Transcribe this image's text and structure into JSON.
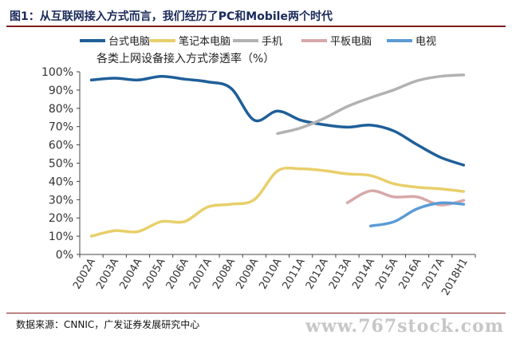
{
  "header": {
    "title": "图1：从互联网接入方式而言，我们经历了PC和Mobile两个时代"
  },
  "source": "数据来源：CNNIC，广发证券发展研究中心",
  "watermark": "www.767stock.com",
  "chart_data": {
    "type": "line",
    "title": "各类上网设备接入方式渗透率（%）",
    "xlabel": "",
    "ylabel": "",
    "ylim": [
      0,
      100
    ],
    "y_ticks": [
      "0%",
      "10%",
      "20%",
      "30%",
      "40%",
      "50%",
      "60%",
      "70%",
      "80%",
      "90%",
      "100%"
    ],
    "categories": [
      "2002A",
      "2003A",
      "2004A",
      "2005A",
      "2006A",
      "2007A",
      "2008A",
      "2009A",
      "2010A",
      "2011A",
      "2012A",
      "2013A",
      "2014A",
      "2015A",
      "2016A",
      "2017A",
      "2018H1"
    ],
    "grid": false,
    "legend_position": "top",
    "series": [
      {
        "name": "台式电脑",
        "color": "#1f5f99",
        "values": [
          95.5,
          96.5,
          95.5,
          97.5,
          96,
          94.5,
          91,
          73.5,
          78.5,
          73.5,
          71,
          69.7,
          70.8,
          67.6,
          60.1,
          53.2,
          48.9
        ]
      },
      {
        "name": "笔记本电脑",
        "color": "#e8cf6a",
        "values": [
          10,
          13,
          12.5,
          18,
          18,
          26,
          27.5,
          30,
          45.7,
          46.9,
          45.9,
          44.1,
          43.2,
          38.7,
          36.8,
          35.9,
          34.5
        ]
      },
      {
        "name": "手机",
        "color": "#b2b2b2",
        "values": [
          null,
          null,
          null,
          null,
          null,
          null,
          null,
          null,
          66.2,
          69.3,
          74.5,
          81,
          85.8,
          90.1,
          95.1,
          97.5,
          98.3
        ]
      },
      {
        "name": "平板电脑",
        "color": "#d8a8a8",
        "values": [
          null,
          null,
          null,
          null,
          null,
          null,
          null,
          null,
          null,
          null,
          null,
          28.3,
          34.8,
          31.5,
          31.5,
          27.1,
          29.6
        ]
      },
      {
        "name": "电视",
        "color": "#5b9bd5",
        "values": [
          null,
          null,
          null,
          null,
          null,
          null,
          null,
          null,
          null,
          null,
          null,
          null,
          15.6,
          17.9,
          25,
          28.2,
          27.5
        ]
      }
    ]
  }
}
